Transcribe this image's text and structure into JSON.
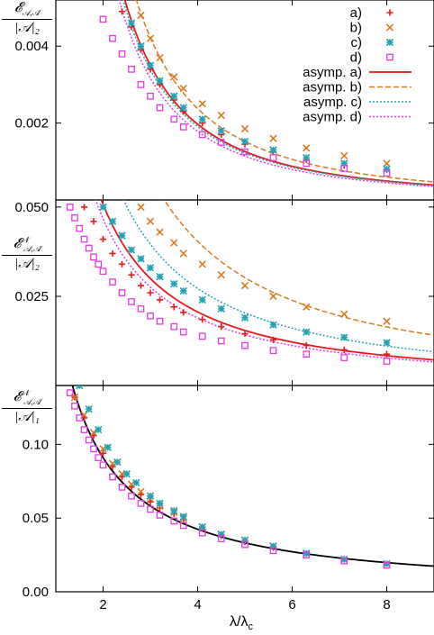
{
  "chart_data": [
    {
      "type": "scatter",
      "ylabel": "E_{A,Ā} / |A|_2",
      "ylabel_num": "𝓔",
      "ylabel_sub": "𝒜,𝒜̄",
      "ylabel_den": "|𝒜|₂",
      "xlim": [
        1,
        9
      ],
      "ylim": [
        0,
        0.0052
      ],
      "yticks": [
        0.002,
        0.004
      ],
      "ytick_labels": [
        "0.002",
        "0.004"
      ],
      "legend_position": "top-right",
      "legend": [
        "a)",
        "b)",
        "c)",
        "d)",
        "asymp. a)",
        "asymp. b)",
        "asymp. c)",
        "asymp. d)"
      ],
      "series": [
        {
          "name": "a)",
          "marker": "plus",
          "color": "#e41a1c",
          "x": [
            2.4,
            2.6,
            2.8,
            3.0,
            3.2,
            3.5,
            3.7,
            4.1,
            4.5,
            5.0,
            5.6,
            6.3,
            7.1,
            8.0
          ],
          "y": [
            0.0049,
            0.0045,
            0.0039,
            0.0034,
            0.003,
            0.0026,
            0.0023,
            0.002,
            0.0017,
            0.00145,
            0.00125,
            0.00105,
            0.0009,
            0.00078
          ]
        },
        {
          "name": "b)",
          "marker": "x",
          "color": "#d97a1e",
          "x": [
            2.8,
            3.0,
            3.2,
            3.5,
            3.7,
            4.1,
            4.5,
            5.0,
            5.6,
            6.3,
            7.1,
            8.0
          ],
          "y": [
            0.0048,
            0.0042,
            0.0037,
            0.0032,
            0.0029,
            0.0025,
            0.0022,
            0.00185,
            0.0016,
            0.00135,
            0.00115,
            0.00095
          ]
        },
        {
          "name": "c)",
          "marker": "star",
          "color": "#23a3b4",
          "x": [
            2.6,
            2.8,
            3.0,
            3.2,
            3.5,
            3.7,
            4.1,
            4.5,
            5.0,
            5.6,
            6.3,
            7.1,
            8.0
          ],
          "y": [
            0.0046,
            0.004,
            0.0035,
            0.0031,
            0.0027,
            0.0024,
            0.0021,
            0.0018,
            0.00152,
            0.0013,
            0.0011,
            0.00095,
            0.0008
          ]
        },
        {
          "name": "d)",
          "marker": "square",
          "color": "#e23be2",
          "x": [
            2.0,
            2.2,
            2.4,
            2.6,
            2.8,
            3.0,
            3.2,
            3.5,
            3.7,
            4.1,
            4.5,
            5.0,
            5.6,
            6.3,
            7.1,
            8.0
          ],
          "y": [
            0.0047,
            0.0042,
            0.0038,
            0.0034,
            0.003,
            0.0027,
            0.0024,
            0.0021,
            0.0019,
            0.0017,
            0.0015,
            0.00125,
            0.0011,
            0.00095,
            0.00082,
            0.0007
          ]
        }
      ],
      "curves": [
        {
          "name": "asymp. a)",
          "style": "solid",
          "color": "#e41a1c",
          "a": 0.0315,
          "p": 2
        },
        {
          "name": "asymp. b)",
          "style": "dashed",
          "color": "#d97a1e",
          "a": 0.038,
          "p": 2
        },
        {
          "name": "asymp. c)",
          "style": "dotted",
          "color": "#23a3b4",
          "a": 0.0305,
          "p": 2
        },
        {
          "name": "asymp. d)",
          "style": "dotted",
          "color": "#e23be2",
          "a": 0.0285,
          "p": 2
        }
      ]
    },
    {
      "type": "scatter",
      "ylabel_num": "𝓔",
      "ylabel_sup": "𝒩",
      "ylabel_sub": "𝒜,𝒜̄",
      "ylabel_den": "|𝒜|₂",
      "xlim": [
        1,
        9
      ],
      "ylim": [
        0,
        0.052
      ],
      "yticks": [
        0.025,
        0.05
      ],
      "ytick_labels": [
        "0.025",
        "0.050"
      ],
      "series": [
        {
          "name": "a)",
          "marker": "plus",
          "color": "#e41a1c",
          "x": [
            1.6,
            1.8,
            2.0,
            2.2,
            2.4,
            2.6,
            2.8,
            3.0,
            3.2,
            3.5,
            3.7,
            4.1,
            4.5,
            5.0,
            5.6,
            6.3,
            7.1,
            8.0
          ],
          "y": [
            0.05,
            0.046,
            0.041,
            0.037,
            0.034,
            0.031,
            0.028,
            0.026,
            0.024,
            0.022,
            0.0205,
            0.0185,
            0.0165,
            0.0145,
            0.0128,
            0.0112,
            0.01,
            0.0088
          ]
        },
        {
          "name": "b)",
          "marker": "x",
          "color": "#d97a1e",
          "x": [
            2.8,
            3.0,
            3.2,
            3.5,
            3.7,
            4.1,
            4.5,
            5.0,
            5.6,
            6.3,
            7.1,
            8.0
          ],
          "y": [
            0.05,
            0.046,
            0.043,
            0.04,
            0.037,
            0.034,
            0.031,
            0.028,
            0.025,
            0.022,
            0.02,
            0.018
          ]
        },
        {
          "name": "c)",
          "marker": "star",
          "color": "#23a3b4",
          "x": [
            2.0,
            2.2,
            2.4,
            2.6,
            2.8,
            3.0,
            3.2,
            3.5,
            3.7,
            4.1,
            4.5,
            5.0,
            5.6,
            6.3,
            7.1,
            8.0
          ],
          "y": [
            0.05,
            0.046,
            0.042,
            0.038,
            0.0355,
            0.033,
            0.0305,
            0.0285,
            0.0265,
            0.024,
            0.0215,
            0.019,
            0.017,
            0.015,
            0.0135,
            0.012
          ]
        },
        {
          "name": "d)",
          "marker": "square",
          "color": "#e23be2",
          "x": [
            1.3,
            1.4,
            1.5,
            1.6,
            1.7,
            1.8,
            1.9,
            2.0,
            2.2,
            2.4,
            2.6,
            2.8,
            3.0,
            3.2,
            3.5,
            3.7,
            4.1,
            4.5,
            5.0,
            5.6,
            6.3,
            7.1,
            8.0
          ],
          "y": [
            0.05,
            0.047,
            0.044,
            0.041,
            0.0385,
            0.036,
            0.034,
            0.032,
            0.029,
            0.026,
            0.0235,
            0.0215,
            0.0195,
            0.018,
            0.0165,
            0.015,
            0.0138,
            0.0125,
            0.0112,
            0.0098,
            0.0088,
            0.0078,
            0.0068
          ]
        }
      ],
      "curves": [
        {
          "name": "asymp. a)",
          "style": "solid",
          "color": "#e41a1c",
          "a": 0.125,
          "p": 1.3
        },
        {
          "name": "asymp. b)",
          "style": "dashed",
          "color": "#d97a1e",
          "a": 0.245,
          "p": 1.3
        },
        {
          "name": "asymp. c)",
          "style": "dotted",
          "color": "#23a3b4",
          "a": 0.165,
          "p": 1.3
        },
        {
          "name": "asymp. d)",
          "style": "dotted",
          "color": "#e23be2",
          "a": 0.115,
          "p": 1.3
        }
      ]
    },
    {
      "type": "scatter",
      "ylabel_num": "𝓔",
      "ylabel_sup": "𝒩",
      "ylabel_sub": "𝒜,𝒜̄",
      "ylabel_den": "|𝒜|₁",
      "xlabel": "λ/λ_c",
      "xlabel_main": "λ/λ",
      "xlabel_sub": "c",
      "xlim": [
        1,
        9
      ],
      "ylim": [
        0,
        0.14
      ],
      "xticks": [
        2,
        4,
        6,
        8
      ],
      "xtick_labels": [
        "2",
        "4",
        "6",
        "8"
      ],
      "yticks": [
        0,
        0.05,
        0.1
      ],
      "ytick_labels": [
        "0.00",
        "0.05",
        "0.10"
      ],
      "series": [
        {
          "name": "a)",
          "marker": "plus",
          "color": "#e41a1c",
          "x": [
            1.4,
            1.6,
            1.8,
            2.0,
            2.2,
            2.4,
            2.6,
            2.8,
            3.0,
            3.2,
            3.5,
            3.7,
            4.1,
            4.5,
            5.0,
            5.6,
            6.3,
            7.1,
            8.0
          ],
          "y": [
            0.132,
            0.118,
            0.106,
            0.094,
            0.085,
            0.078,
            0.071,
            0.066,
            0.061,
            0.057,
            0.053,
            0.049,
            0.043,
            0.038,
            0.034,
            0.03,
            0.026,
            0.022,
            0.019
          ]
        },
        {
          "name": "b)",
          "marker": "x",
          "color": "#d97a1e",
          "x": [
            1.4,
            1.6,
            1.8,
            2.0,
            2.2,
            2.4,
            2.6,
            2.8,
            3.0,
            3.2,
            3.5,
            3.7,
            4.1,
            4.5,
            5.0,
            5.6,
            6.3,
            7.1,
            8.0
          ],
          "y": [
            0.132,
            0.12,
            0.108,
            0.097,
            0.087,
            0.08,
            0.073,
            0.068,
            0.063,
            0.058,
            0.054,
            0.05,
            0.044,
            0.039,
            0.035,
            0.031,
            0.026,
            0.022,
            0.019
          ]
        },
        {
          "name": "c)",
          "marker": "star",
          "color": "#23a3b4",
          "x": [
            1.5,
            1.7,
            1.9,
            2.1,
            2.3,
            2.5,
            2.7,
            3.0,
            3.2,
            3.5,
            3.7,
            4.1,
            4.5,
            5.0,
            5.6,
            6.3,
            7.1,
            8.0
          ],
          "y": [
            0.14,
            0.124,
            0.11,
            0.098,
            0.088,
            0.08,
            0.074,
            0.065,
            0.06,
            0.055,
            0.051,
            0.044,
            0.039,
            0.035,
            0.031,
            0.026,
            0.022,
            0.019
          ]
        },
        {
          "name": "d)",
          "marker": "square",
          "color": "#e23be2",
          "x": [
            1.3,
            1.4,
            1.5,
            1.6,
            1.7,
            1.8,
            1.9,
            2.0,
            2.2,
            2.4,
            2.6,
            2.8,
            3.0,
            3.2,
            3.5,
            3.7,
            4.1,
            4.5,
            5.0,
            5.6,
            6.3,
            7.1,
            8.0
          ],
          "y": [
            0.135,
            0.126,
            0.118,
            0.11,
            0.103,
            0.097,
            0.091,
            0.086,
            0.078,
            0.071,
            0.065,
            0.06,
            0.056,
            0.052,
            0.048,
            0.045,
            0.04,
            0.036,
            0.032,
            0.028,
            0.025,
            0.021,
            0.018
          ]
        }
      ],
      "curves": [
        {
          "name": "fit",
          "style": "solid",
          "color": "#000000",
          "a": 0.195,
          "p": 1.1
        }
      ]
    }
  ]
}
